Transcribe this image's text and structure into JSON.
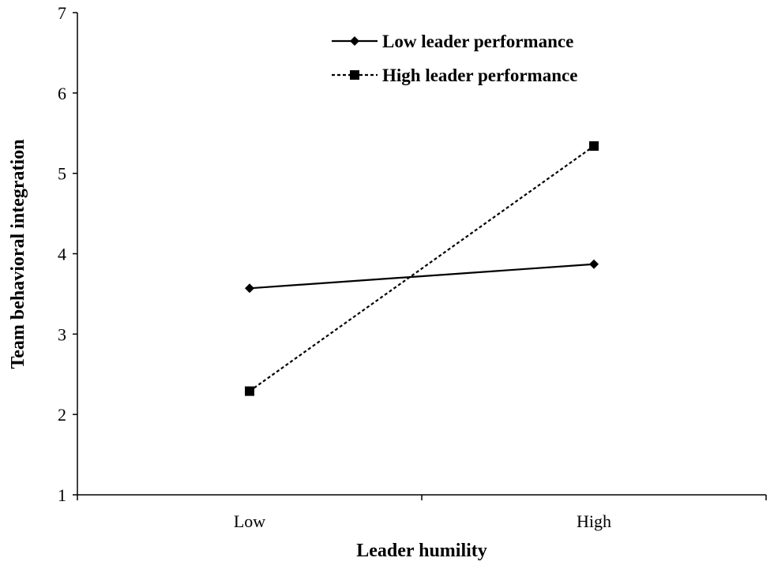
{
  "chart_data": {
    "type": "line",
    "xlabel": "Leader humility",
    "ylabel": "Team behavioral integration",
    "categories": [
      "Low",
      "High"
    ],
    "ylim": [
      1,
      7
    ],
    "yticks": [
      "1",
      "2",
      "3",
      "4",
      "5",
      "6",
      "7"
    ],
    "grid": false,
    "legend_position": "top-right",
    "series": [
      {
        "name": "Low leader performance",
        "values": [
          3.57,
          3.87
        ],
        "marker": "diamond",
        "line_style": "solid",
        "color": "#000000"
      },
      {
        "name": "High leader performance",
        "values": [
          2.29,
          5.34
        ],
        "marker": "square",
        "line_style": "dashed",
        "color": "#000000"
      }
    ]
  }
}
